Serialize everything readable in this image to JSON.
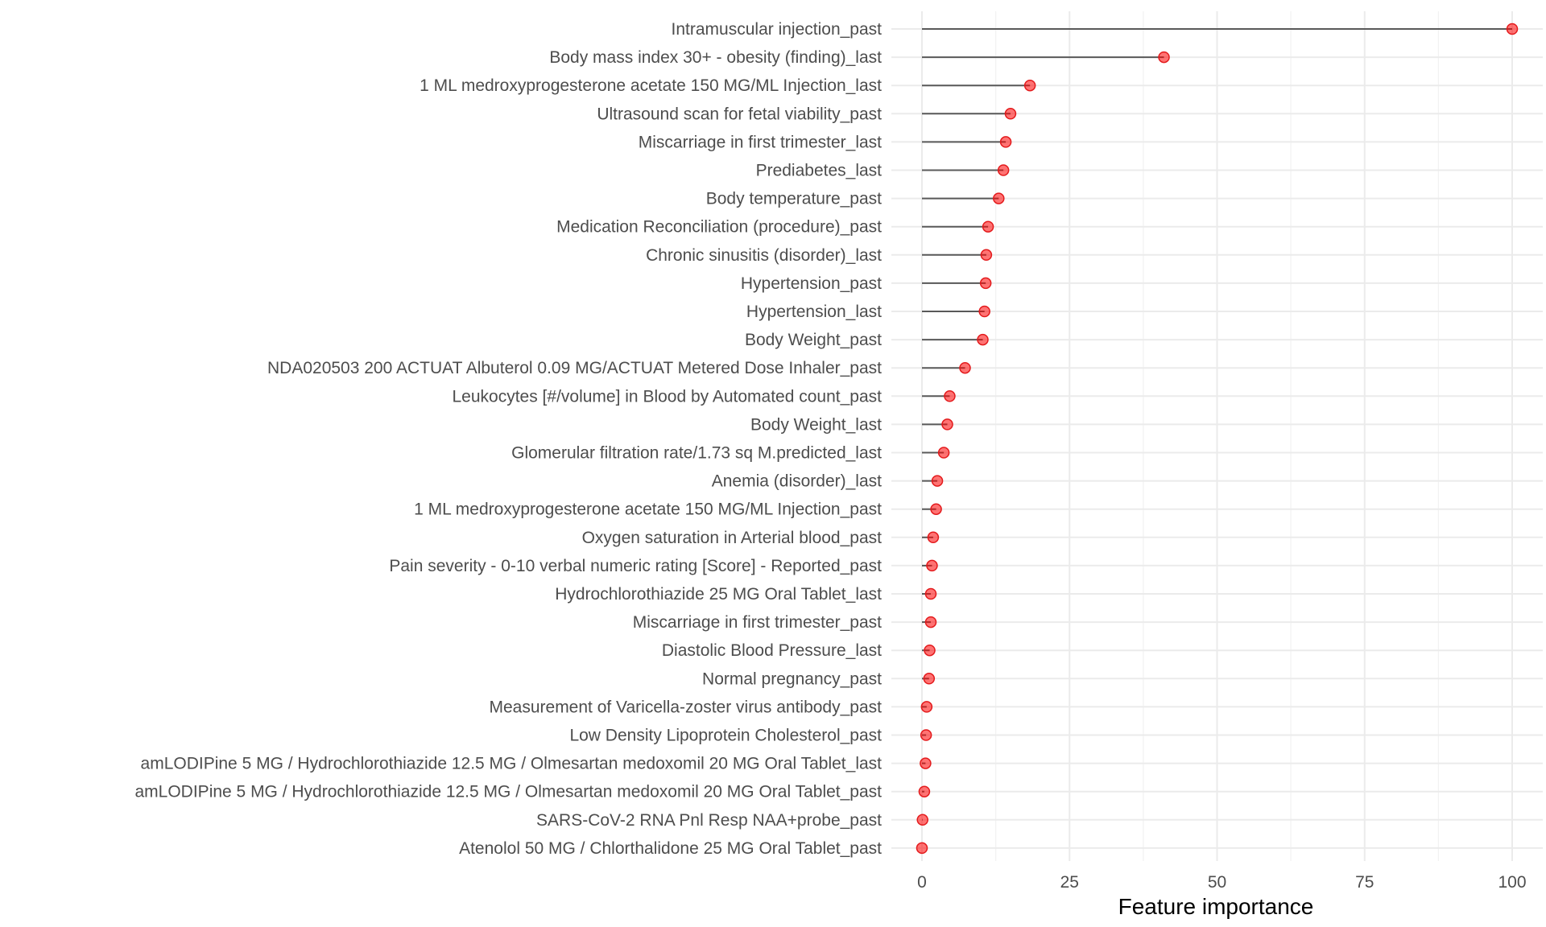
{
  "chart_data": {
    "type": "lollipop",
    "orientation": "horizontal",
    "xlabel": "Feature importance",
    "ylabel": "",
    "xlim": [
      0,
      100
    ],
    "x_ticks": [
      0,
      25,
      50,
      75,
      100
    ],
    "grid": true,
    "colors": {
      "point": "#ff0000",
      "stem": "#595959",
      "grid": "#ebebeb"
    },
    "categories": [
      "Intramuscular injection_past",
      "Body mass index 30+ - obesity (finding)_last",
      "1 ML medroxyprogesterone acetate 150 MG/ML Injection_last",
      "Ultrasound scan for fetal viability_past",
      "Miscarriage in first trimester_last",
      "Prediabetes_last",
      "Body temperature_past",
      "Medication Reconciliation (procedure)_past",
      "Chronic sinusitis (disorder)_last",
      "Hypertension_past",
      "Hypertension_last",
      "Body Weight_past",
      "NDA020503 200 ACTUAT Albuterol 0.09 MG/ACTUAT Metered Dose Inhaler_past",
      "Leukocytes [#/volume] in Blood by Automated count_past",
      "Body Weight_last",
      "Glomerular filtration rate/1.73 sq M.predicted_last",
      "Anemia (disorder)_last",
      "1 ML medroxyprogesterone acetate 150 MG/ML Injection_past",
      "Oxygen saturation in Arterial blood_past",
      "Pain severity - 0-10 verbal numeric rating [Score] - Reported_past",
      "Hydrochlorothiazide 25 MG Oral Tablet_last",
      "Miscarriage in first trimester_past",
      "Diastolic Blood Pressure_last",
      "Normal pregnancy_past",
      "Measurement of Varicella-zoster virus antibody_past",
      "Low Density Lipoprotein Cholesterol_past",
      "amLODIPine 5 MG / Hydrochlorothiazide 12.5 MG / Olmesartan medoxomil 20 MG Oral Tablet_last",
      "amLODIPine 5 MG / Hydrochlorothiazide 12.5 MG / Olmesartan medoxomil 20 MG Oral Tablet_past",
      "SARS-CoV-2 RNA Pnl Resp NAA+probe_past",
      "Atenolol 50 MG / Chlorthalidone 25 MG Oral Tablet_past"
    ],
    "values": [
      100,
      41,
      18.3,
      15,
      14.2,
      13.8,
      13,
      11.2,
      10.9,
      10.8,
      10.6,
      10.3,
      7.3,
      4.7,
      4.3,
      3.7,
      2.6,
      2.4,
      1.9,
      1.7,
      1.5,
      1.5,
      1.3,
      1.2,
      0.8,
      0.7,
      0.6,
      0.4,
      0.1,
      0
    ]
  }
}
